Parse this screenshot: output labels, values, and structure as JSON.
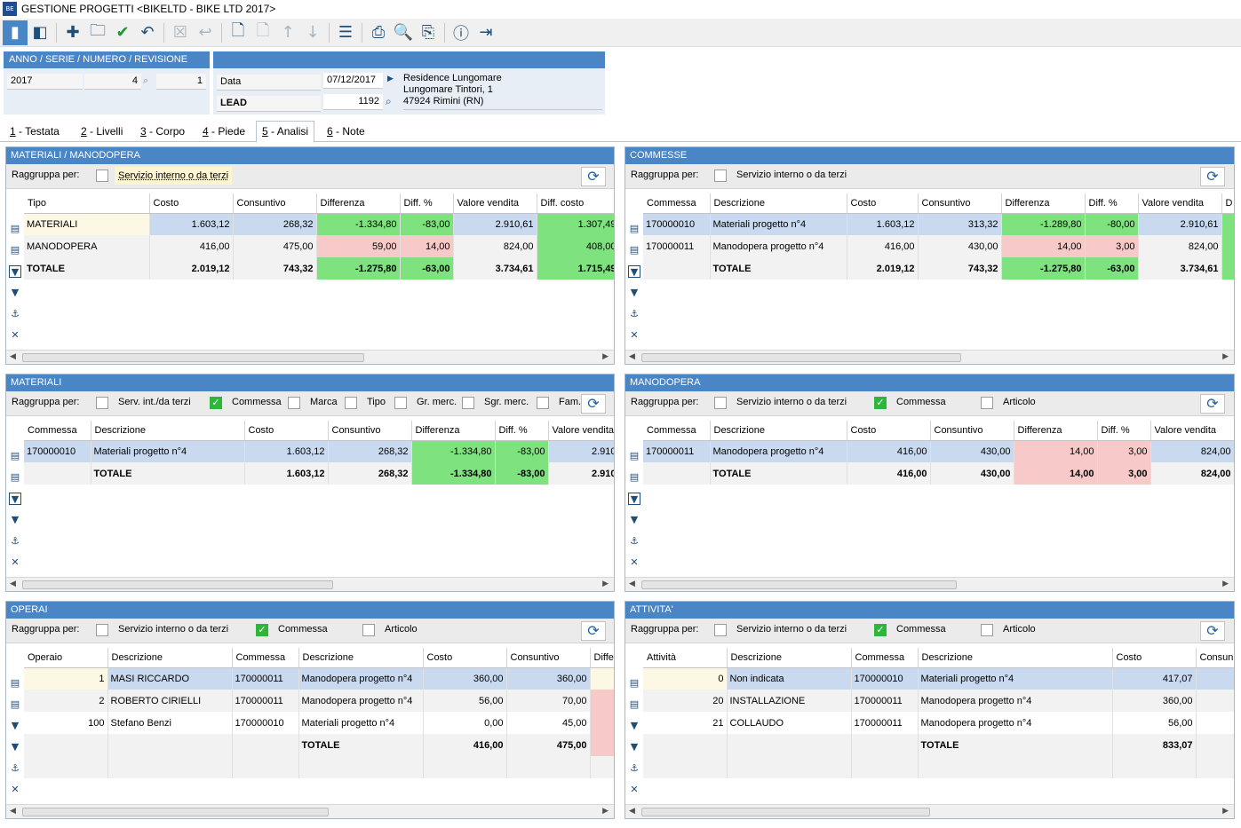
{
  "window": {
    "logo_text": "BE",
    "title": "GESTIONE PROGETTI <BIKELTD - BIKE LTD 2017>"
  },
  "header": {
    "doc_label": "ANNO / SERIE / NUMERO / REVISIONE",
    "anno": "2017",
    "serie": "",
    "numero": "4",
    "revisione": "1",
    "data_label": "Data",
    "data_value": "07/12/2017",
    "lead_label": "LEAD",
    "lead_value": "1192",
    "address": [
      "Residence Lungomare",
      "Lungomare Tintori, 1",
      "47924 Rimini (RN)"
    ]
  },
  "tabs": [
    {
      "n": "1",
      "label": " - Testata"
    },
    {
      "n": "2",
      "label": " - Livelli"
    },
    {
      "n": "3",
      "label": " - Corpo"
    },
    {
      "n": "4",
      "label": " - Piede"
    },
    {
      "n": "5",
      "label": " - Analisi"
    },
    {
      "n": "6",
      "label": " - Note"
    }
  ],
  "group_label": "Raggruppa per:",
  "panels": {
    "mm": {
      "title": "MATERIALI / MANODOPERA",
      "options": [
        {
          "label": "Servizio interno o da terzi",
          "checked": false
        }
      ],
      "columns": [
        "Tipo",
        "Costo",
        "Consuntivo",
        "Differenza",
        "Diff. %",
        "Valore vendita",
        "Diff. costo"
      ],
      "rows": [
        [
          "MATERIALI",
          "1.603,12",
          "268,32",
          "-1.334,80",
          "-83,00",
          "2.910,61",
          "1.307,49"
        ],
        [
          "MANODOPERA",
          "416,00",
          "475,00",
          "59,00",
          "14,00",
          "824,00",
          "408,00"
        ],
        [
          "TOTALE",
          "2.019,12",
          "743,32",
          "-1.275,80",
          "-63,00",
          "3.734,61",
          "1.715,49"
        ]
      ]
    },
    "comm": {
      "title": "COMMESSE",
      "options": [
        {
          "label": "Servizio interno o da terzi",
          "checked": false
        }
      ],
      "columns": [
        "Commessa",
        "Descrizione",
        "Costo",
        "Consuntivo",
        "Differenza",
        "Diff. %",
        "Valore vendita",
        "D"
      ],
      "rows": [
        [
          "170000010",
          "Materiali progetto n°4",
          "1.603,12",
          "313,32",
          "-1.289,80",
          "-80,00",
          "2.910,61",
          ""
        ],
        [
          "170000011",
          "Manodopera progetto n°4",
          "416,00",
          "430,00",
          "14,00",
          "3,00",
          "824,00",
          ""
        ],
        [
          "",
          "TOTALE",
          "2.019,12",
          "743,32",
          "-1.275,80",
          "-63,00",
          "3.734,61",
          ""
        ]
      ]
    },
    "mat": {
      "title": "MATERIALI",
      "options": [
        {
          "label": "Serv. int./da terzi",
          "checked": false
        },
        {
          "label": "Commessa",
          "checked": true
        },
        {
          "label": "Marca",
          "checked": false
        },
        {
          "label": "Tipo",
          "checked": false
        },
        {
          "label": "Gr. merc.",
          "checked": false
        },
        {
          "label": "Sgr. merc.",
          "checked": false
        },
        {
          "label": "Fam.",
          "checked": false
        }
      ],
      "columns": [
        "Commessa",
        "Descrizione",
        "Costo",
        "Consuntivo",
        "Differenza",
        "Diff. %",
        "Valore vendita"
      ],
      "rows": [
        [
          "170000010",
          "Materiali progetto n°4",
          "1.603,12",
          "268,32",
          "-1.334,80",
          "-83,00",
          "2.910"
        ],
        [
          "",
          "TOTALE",
          "1.603,12",
          "268,32",
          "-1.334,80",
          "-83,00",
          "2.910"
        ]
      ]
    },
    "mano": {
      "title": "MANODOPERA",
      "options": [
        {
          "label": "Servizio interno o da terzi",
          "checked": false
        },
        {
          "label": "Commessa",
          "checked": true
        },
        {
          "label": "Articolo",
          "checked": false
        }
      ],
      "columns": [
        "Commessa",
        "Descrizione",
        "Costo",
        "Consuntivo",
        "Differenza",
        "Diff. %",
        "Valore vendita"
      ],
      "rows": [
        [
          "170000011",
          "Manodopera progetto n°4",
          "416,00",
          "430,00",
          "14,00",
          "3,00",
          "824,00"
        ],
        [
          "",
          "TOTALE",
          "416,00",
          "430,00",
          "14,00",
          "3,00",
          "824,00"
        ]
      ]
    },
    "oper": {
      "title": "OPERAI",
      "options": [
        {
          "label": "Servizio interno o da terzi",
          "checked": false
        },
        {
          "label": "Commessa",
          "checked": true
        },
        {
          "label": "Articolo",
          "checked": false
        }
      ],
      "columns": [
        "Operaio",
        "Descrizione",
        "Commessa",
        "Descrizione",
        "Costo",
        "Consuntivo",
        "Diffe"
      ],
      "rows": [
        [
          "1",
          "MASI RICCARDO",
          "170000011",
          "Manodopera progetto n°4",
          "360,00",
          "360,00",
          ""
        ],
        [
          "2",
          "ROBERTO CIRIELLI",
          "170000011",
          "Manodopera progetto n°4",
          "56,00",
          "70,00",
          ""
        ],
        [
          "100",
          "Stefano Benzi",
          "170000010",
          "Materiali progetto n°4",
          "0,00",
          "45,00",
          ""
        ],
        [
          "",
          "",
          "",
          "TOTALE",
          "416,00",
          "475,00",
          ""
        ]
      ]
    },
    "att": {
      "title": "ATTIVITA'",
      "options": [
        {
          "label": "Servizio interno o da terzi",
          "checked": false
        },
        {
          "label": "Commessa",
          "checked": true
        },
        {
          "label": "Articolo",
          "checked": false
        }
      ],
      "columns": [
        "Attività",
        "Descrizione",
        "Commessa",
        "Descrizione",
        "Costo",
        "Consun"
      ],
      "rows": [
        [
          "0",
          "Non indicata",
          "170000010",
          "Materiali progetto n°4",
          "417,07",
          ""
        ],
        [
          "20",
          "INSTALLAZIONE",
          "170000011",
          "Manodopera progetto n°4",
          "360,00",
          ""
        ],
        [
          "21",
          "COLLAUDO",
          "170000011",
          "Manodopera progetto n°4",
          "56,00",
          ""
        ],
        [
          "",
          "",
          "",
          "TOTALE",
          "833,07",
          ""
        ]
      ]
    }
  },
  "colors": {
    "accent": "#4a86c5",
    "positive": "#7ee37e",
    "negative": "#f8c9c9",
    "selected": "#c9daf0"
  }
}
